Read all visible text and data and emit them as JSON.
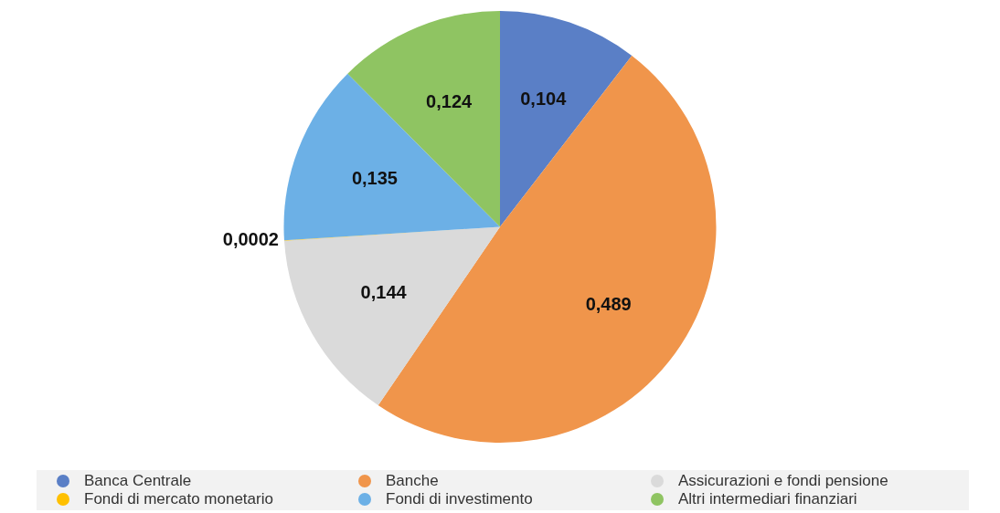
{
  "chart_data": {
    "type": "pie",
    "categories": [
      "Banca Centrale",
      "Banche",
      "Assicurazioni e fondi pensione",
      "Fondi di mercato monetario",
      "Fondi di investimento",
      "Altri intermediari finanziari"
    ],
    "values": [
      0.104,
      0.489,
      0.144,
      0.0002,
      0.135,
      0.124
    ],
    "value_labels": [
      "0,104",
      "0,489",
      "0,144",
      "0,0002",
      "0,135",
      "0,124"
    ],
    "colors": [
      "#5a7fc6",
      "#f0954b",
      "#dadada",
      "#ffc000",
      "#6cb0e6",
      "#8fc462"
    ],
    "legend": "bottom"
  }
}
